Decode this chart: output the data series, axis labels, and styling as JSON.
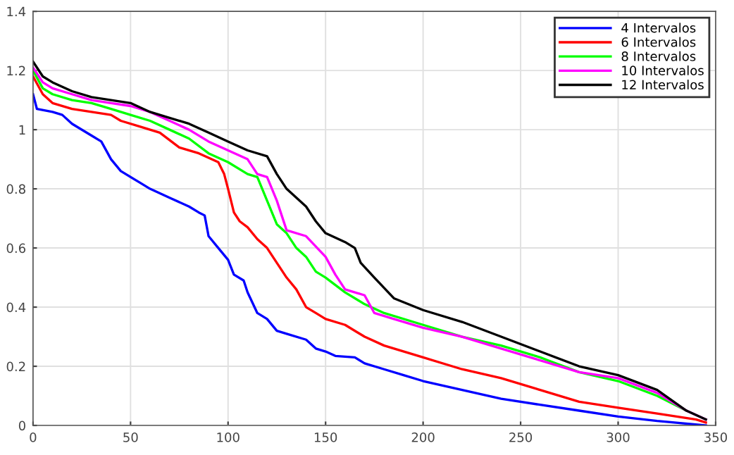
{
  "chart_data": {
    "type": "line",
    "xlim": [
      0,
      350
    ],
    "ylim": [
      0,
      1.4
    ],
    "xticks": [
      0,
      50,
      100,
      150,
      200,
      250,
      300,
      350
    ],
    "yticks": [
      0,
      0.2,
      0.4,
      0.6,
      0.8,
      1,
      1.2,
      1.4
    ],
    "grid": true,
    "legend": "top right",
    "series": [
      {
        "name": "4 Intervalos",
        "color": "#0000ff",
        "x": [
          0,
          2,
          10,
          15,
          20,
          30,
          35,
          40,
          45,
          55,
          60,
          70,
          80,
          85,
          88,
          90,
          95,
          100,
          103,
          108,
          110,
          115,
          120,
          125,
          130,
          140,
          145,
          150,
          155,
          165,
          170,
          180,
          190,
          200,
          220,
          240,
          260,
          280,
          300,
          320,
          345
        ],
        "values": [
          1.12,
          1.07,
          1.06,
          1.05,
          1.02,
          0.98,
          0.96,
          0.9,
          0.86,
          0.82,
          0.8,
          0.77,
          0.74,
          0.72,
          0.71,
          0.64,
          0.6,
          0.56,
          0.51,
          0.49,
          0.45,
          0.38,
          0.36,
          0.32,
          0.31,
          0.29,
          0.26,
          0.25,
          0.235,
          0.23,
          0.21,
          0.19,
          0.17,
          0.15,
          0.12,
          0.09,
          0.07,
          0.05,
          0.03,
          0.015,
          0.0
        ]
      },
      {
        "name": "6 Intervalos",
        "color": "#ff0000",
        "x": [
          0,
          5,
          10,
          20,
          30,
          40,
          45,
          55,
          65,
          75,
          85,
          95,
          98,
          100,
          103,
          106,
          110,
          115,
          120,
          125,
          130,
          135,
          140,
          145,
          150,
          160,
          170,
          180,
          200,
          220,
          240,
          260,
          280,
          300,
          320,
          340,
          345
        ],
        "values": [
          1.18,
          1.12,
          1.09,
          1.07,
          1.06,
          1.05,
          1.03,
          1.01,
          0.99,
          0.94,
          0.92,
          0.89,
          0.85,
          0.8,
          0.72,
          0.69,
          0.67,
          0.63,
          0.6,
          0.55,
          0.5,
          0.46,
          0.4,
          0.38,
          0.36,
          0.34,
          0.3,
          0.27,
          0.23,
          0.19,
          0.16,
          0.12,
          0.08,
          0.06,
          0.04,
          0.02,
          0.01
        ]
      },
      {
        "name": "8 Intervalos",
        "color": "#00ff00",
        "x": [
          0,
          5,
          10,
          20,
          30,
          40,
          50,
          60,
          70,
          80,
          90,
          100,
          110,
          115,
          120,
          125,
          130,
          135,
          140,
          145,
          150,
          160,
          170,
          180,
          200,
          220,
          240,
          260,
          280,
          300,
          320,
          335
        ],
        "values": [
          1.2,
          1.14,
          1.12,
          1.1,
          1.09,
          1.07,
          1.05,
          1.03,
          1.0,
          0.97,
          0.92,
          0.89,
          0.85,
          0.84,
          0.76,
          0.68,
          0.65,
          0.6,
          0.57,
          0.52,
          0.5,
          0.45,
          0.41,
          0.38,
          0.34,
          0.3,
          0.27,
          0.23,
          0.18,
          0.15,
          0.1,
          0.05
        ]
      },
      {
        "name": "10 Intervalos",
        "color": "#ff00ff",
        "x": [
          0,
          5,
          10,
          20,
          30,
          40,
          50,
          60,
          70,
          80,
          90,
          100,
          110,
          115,
          120,
          125,
          130,
          140,
          150,
          155,
          160,
          170,
          175,
          185,
          200,
          220,
          240,
          260,
          280,
          300,
          320,
          335,
          345
        ],
        "values": [
          1.21,
          1.16,
          1.14,
          1.12,
          1.1,
          1.09,
          1.08,
          1.06,
          1.03,
          1.0,
          0.96,
          0.93,
          0.9,
          0.85,
          0.84,
          0.76,
          0.66,
          0.64,
          0.57,
          0.51,
          0.46,
          0.44,
          0.38,
          0.36,
          0.33,
          0.3,
          0.26,
          0.22,
          0.18,
          0.16,
          0.11,
          0.05,
          0.02
        ]
      },
      {
        "name": "12 Intervalos",
        "color": "#000000",
        "x": [
          0,
          5,
          10,
          20,
          30,
          40,
          50,
          60,
          70,
          80,
          90,
          100,
          110,
          120,
          125,
          130,
          140,
          145,
          150,
          160,
          165,
          168,
          175,
          185,
          200,
          220,
          240,
          260,
          280,
          300,
          320,
          335,
          345
        ],
        "values": [
          1.23,
          1.18,
          1.16,
          1.13,
          1.11,
          1.1,
          1.09,
          1.06,
          1.04,
          1.02,
          0.99,
          0.96,
          0.93,
          0.91,
          0.85,
          0.8,
          0.74,
          0.69,
          0.65,
          0.62,
          0.6,
          0.55,
          0.5,
          0.43,
          0.39,
          0.35,
          0.3,
          0.25,
          0.2,
          0.17,
          0.12,
          0.05,
          0.02
        ]
      }
    ]
  }
}
